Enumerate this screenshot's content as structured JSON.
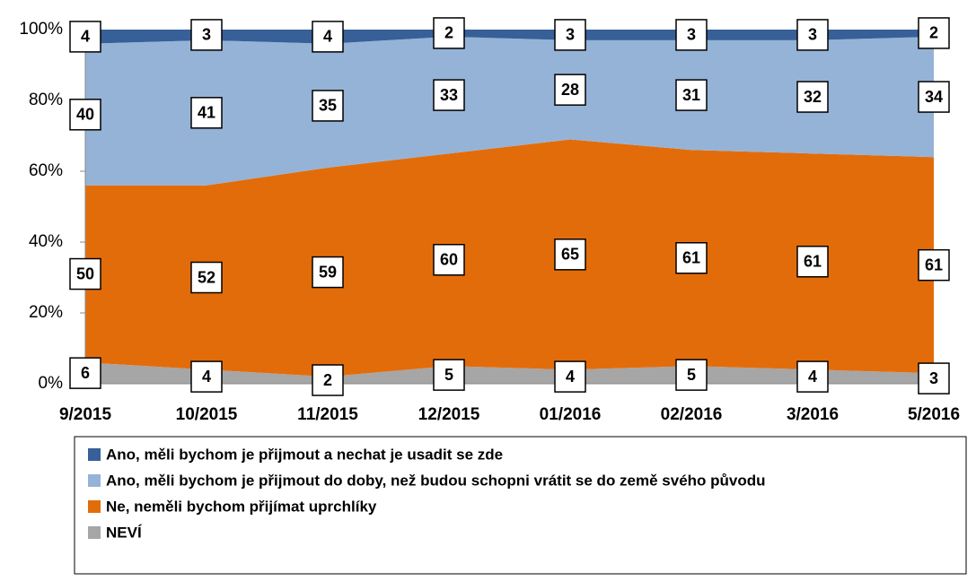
{
  "chart_data": {
    "type": "stacked_area",
    "categories": [
      "9/2015",
      "10/2015",
      "11/2015",
      "12/2015",
      "01/2016",
      "02/2016",
      "3/2016",
      "5/2016"
    ],
    "series": [
      {
        "name": "Ano, měli bychom je přijmout a nechat je usadit se zde",
        "color": "#376099",
        "values": [
          4,
          3,
          4,
          2,
          3,
          3,
          3,
          2
        ]
      },
      {
        "name": "Ano, měli bychom je přijmout do doby, než budou schopni vrátit se do země svého původu",
        "color": "#95b3d7",
        "values": [
          40,
          41,
          35,
          33,
          28,
          31,
          32,
          34
        ]
      },
      {
        "name": "Ne, neměli bychom přijímat uprchlíky",
        "color": "#e36c0a",
        "values": [
          50,
          52,
          59,
          60,
          65,
          61,
          61,
          61
        ]
      },
      {
        "name": "NEVÍ",
        "color": "#a6a6a6",
        "values": [
          6,
          4,
          2,
          5,
          4,
          5,
          4,
          3
        ]
      }
    ],
    "ylim": [
      0,
      100
    ],
    "yticks": [
      {
        "value": 0,
        "label": "0%"
      },
      {
        "value": 20,
        "label": "20%"
      },
      {
        "value": 40,
        "label": "40%"
      },
      {
        "value": 60,
        "label": "60%"
      },
      {
        "value": 80,
        "label": "80%"
      },
      {
        "value": 100,
        "label": "100%"
      }
    ],
    "legend": "bottom"
  }
}
